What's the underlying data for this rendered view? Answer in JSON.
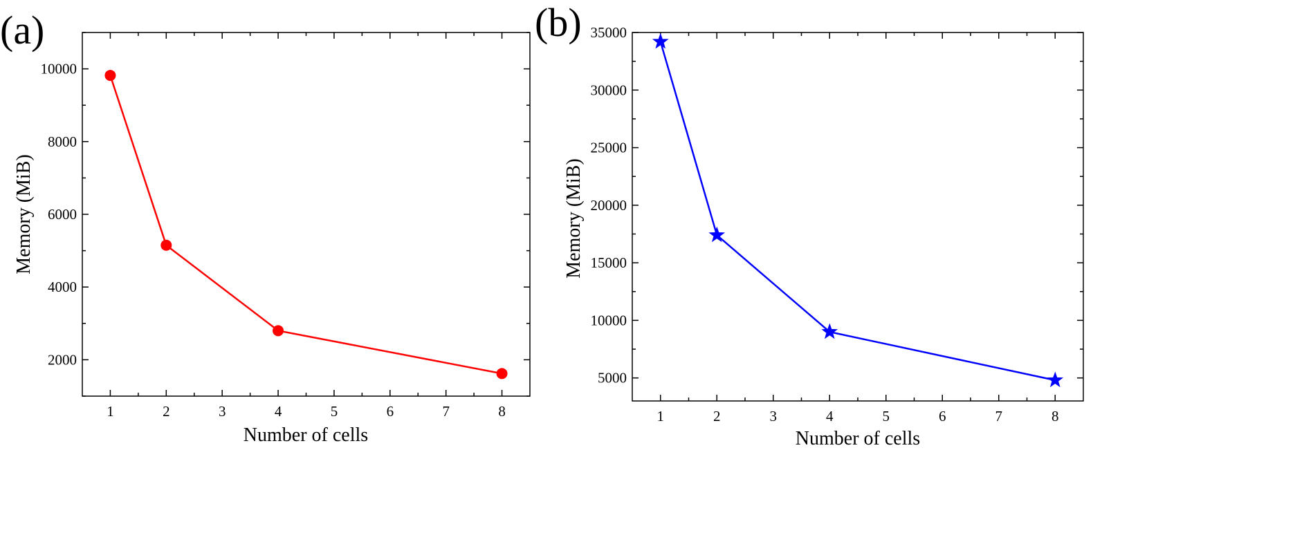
{
  "chart_data": [
    {
      "type": "line",
      "panel_label": "(a)",
      "title": "",
      "xlabel": "Number of cells",
      "ylabel": "Memory (MiB)",
      "x_ticks": [
        "1",
        "2",
        "3",
        "4",
        "5",
        "6",
        "7",
        "8"
      ],
      "y_ticks": [
        "2000",
        "4000",
        "6000",
        "8000",
        "10000"
      ],
      "xlim": [
        0.5,
        8.5
      ],
      "ylim": [
        1000,
        11000
      ],
      "grid": false,
      "series": [
        {
          "name": "Memory",
          "color": "#ff0000",
          "marker": "circle",
          "points": [
            {
              "x": 1,
              "y": 9820
            },
            {
              "x": 2,
              "y": 5150
            },
            {
              "x": 4,
              "y": 2800
            },
            {
              "x": 8,
              "y": 1620
            }
          ]
        }
      ]
    },
    {
      "type": "line",
      "panel_label": "(b)",
      "title": "",
      "xlabel": "Number of cells",
      "ylabel": "Memory (MiB)",
      "x_ticks": [
        "1",
        "2",
        "3",
        "4",
        "5",
        "6",
        "7",
        "8"
      ],
      "y_ticks": [
        "5000",
        "10000",
        "15000",
        "20000",
        "25000",
        "30000",
        "35000"
      ],
      "xlim": [
        0.5,
        8.5
      ],
      "ylim": [
        3000,
        35000
      ],
      "grid": false,
      "series": [
        {
          "name": "Memory",
          "color": "#0000ff",
          "marker": "star",
          "points": [
            {
              "x": 1,
              "y": 34200
            },
            {
              "x": 2,
              "y": 17400
            },
            {
              "x": 4,
              "y": 9000
            },
            {
              "x": 8,
              "y": 4800
            }
          ]
        }
      ]
    }
  ]
}
